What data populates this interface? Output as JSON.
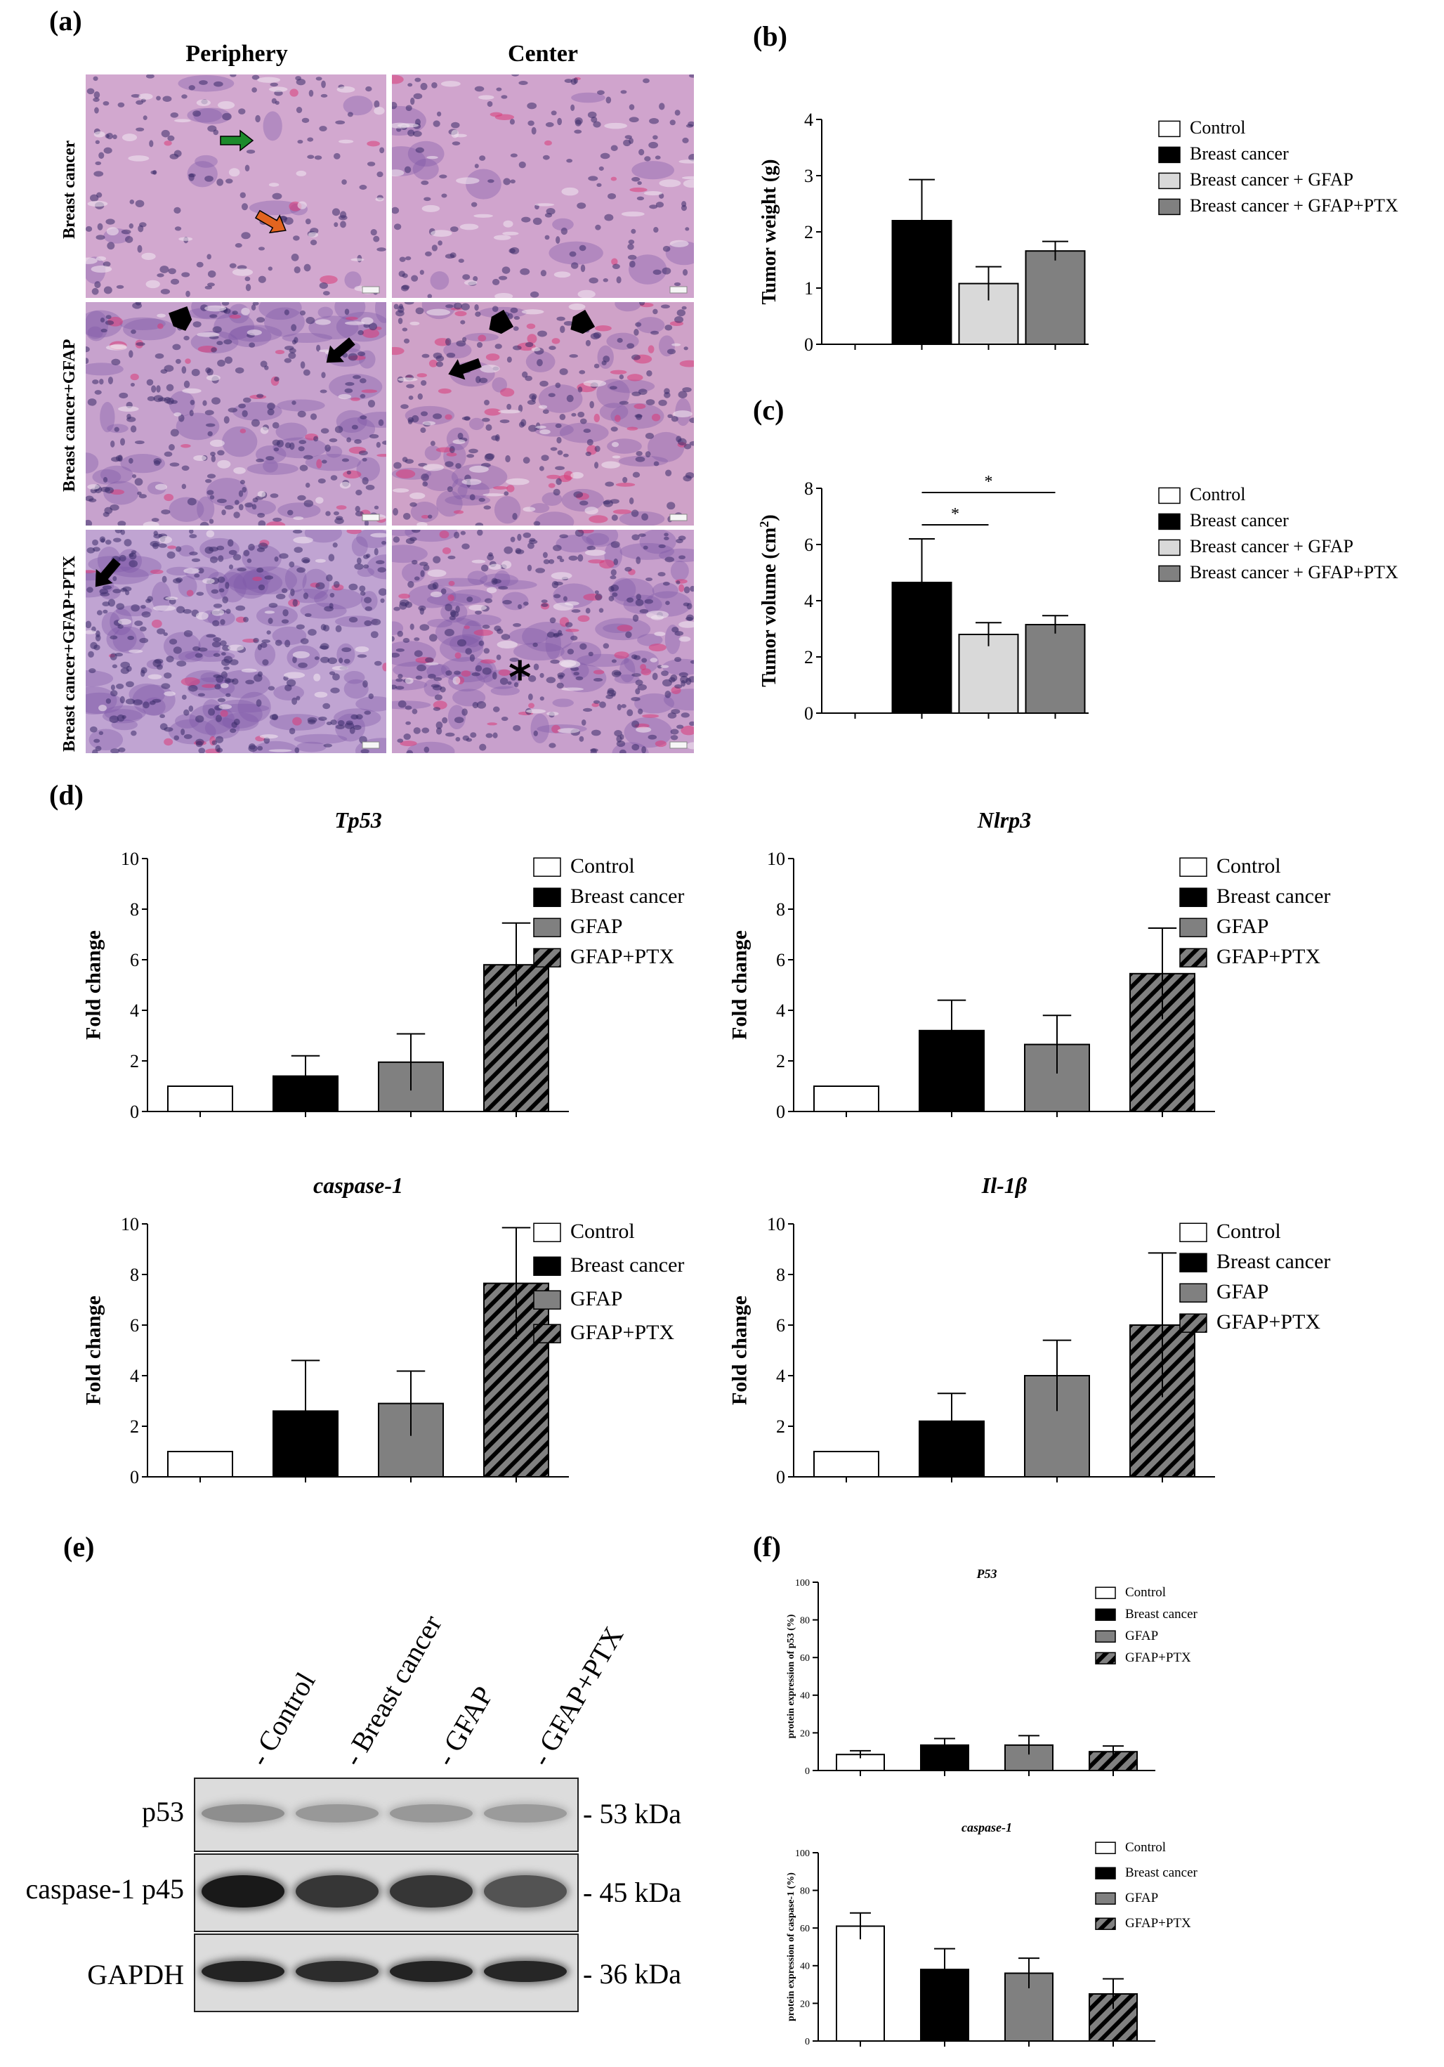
{
  "panels": {
    "a": "(a)",
    "b": "(b)",
    "c": "(c)",
    "d": "(d)",
    "e": "(e)",
    "f": "(f)"
  },
  "histology": {
    "columns": [
      "Periphery",
      "Center"
    ],
    "rows": [
      "Breast cancer",
      "Breast cancer+GFAP",
      "Breast cancer+GFAP+PTX"
    ],
    "colors": {
      "tissue_pink": "#c999c4",
      "tissue_purple": "#7a55a6",
      "nuclei": "#3a2b6a",
      "rbc": "#d83a78"
    },
    "annotations": [
      "green-arrow",
      "orange-arrow",
      "black-arrow",
      "black-pentagon-arrow",
      "asterisk"
    ]
  },
  "chart_data": [
    {
      "id": "b",
      "type": "bar",
      "categories": [
        "Control",
        "Breast cancer",
        "Breast cancer + GFAP",
        "Breast cancer + GFAP+PTX"
      ],
      "values": [
        0,
        2.2,
        1.08,
        1.66
      ],
      "errors": [
        0,
        0.73,
        0.3,
        0.17
      ],
      "colors": [
        "#ffffff",
        "#000000",
        "#d9d9d9",
        "#808080"
      ],
      "patterns": [
        "solid",
        "solid",
        "solid",
        "solid"
      ],
      "title": "",
      "xlabel": "",
      "ylabel": "Tumor weight (g)",
      "ylim": [
        0,
        4
      ],
      "yticks": [
        "0",
        "1",
        "2",
        "3",
        "4"
      ],
      "legend": [
        "Control",
        "Breast cancer",
        "Breast cancer + GFAP",
        "Breast cancer + GFAP+PTX"
      ],
      "legend_position": "right",
      "grid": false
    },
    {
      "id": "c",
      "type": "bar",
      "categories": [
        "Control",
        "Breast cancer",
        "Breast cancer + GFAP",
        "Breast cancer + GFAP+PTX"
      ],
      "values": [
        0,
        4.65,
        2.8,
        3.15
      ],
      "errors": [
        0,
        1.55,
        0.42,
        0.32
      ],
      "colors": [
        "#ffffff",
        "#000000",
        "#d9d9d9",
        "#808080"
      ],
      "patterns": [
        "solid",
        "solid",
        "solid",
        "solid"
      ],
      "title": "",
      "xlabel": "",
      "ylabel": "Tumor volume (cm",
      "ylabel_sup": "2",
      "ylabel_end": ")",
      "ylim": [
        0,
        8
      ],
      "yticks": [
        "0",
        "2",
        "4",
        "6",
        "8"
      ],
      "significance": [
        {
          "from": 1,
          "to": 2,
          "level": 6.7,
          "label": "*"
        },
        {
          "from": 1,
          "to": 3,
          "level": 7.85,
          "label": "*"
        }
      ],
      "legend": [
        "Control",
        "Breast cancer",
        "Breast cancer + GFAP",
        "Breast cancer + GFAP+PTX"
      ],
      "legend_position": "right",
      "grid": false
    },
    {
      "id": "d1",
      "type": "bar",
      "title": "Tp53",
      "categories": [
        "Control",
        "Breast cancer",
        "GFAP",
        "GFAP+PTX"
      ],
      "values": [
        1,
        1.4,
        1.95,
        5.8
      ],
      "errors": [
        0,
        0.8,
        1.12,
        1.65
      ],
      "colors": [
        "#ffffff",
        "#000000",
        "#808080",
        "#808080"
      ],
      "patterns": [
        "solid",
        "solid",
        "solid",
        "hatch"
      ],
      "xlabel": "",
      "ylabel": "Fold change",
      "ylim": [
        0,
        10
      ],
      "yticks": [
        "0",
        "2",
        "4",
        "6",
        "8",
        "10"
      ],
      "legend": [
        "Control",
        "Breast cancer",
        "GFAP",
        "GFAP+PTX"
      ],
      "legend_position": "right",
      "grid": false
    },
    {
      "id": "d2",
      "type": "bar",
      "title": "Nlrp3",
      "categories": [
        "Control",
        "Breast cancer",
        "GFAP",
        "GFAP+PTX"
      ],
      "values": [
        1,
        3.2,
        2.65,
        5.45
      ],
      "errors": [
        0,
        1.2,
        1.15,
        1.8
      ],
      "colors": [
        "#ffffff",
        "#000000",
        "#808080",
        "#808080"
      ],
      "patterns": [
        "solid",
        "solid",
        "solid",
        "hatch"
      ],
      "xlabel": "",
      "ylabel": "Fold change",
      "ylim": [
        0,
        10
      ],
      "yticks": [
        "0",
        "2",
        "4",
        "6",
        "8",
        "10"
      ],
      "legend": [
        "Control",
        "Breast cancer",
        "GFAP",
        "GFAP+PTX"
      ],
      "legend_position": "right",
      "grid": false
    },
    {
      "id": "d3",
      "type": "bar",
      "title": "caspase-1",
      "categories": [
        "Control",
        "Breast cancer",
        "GFAP",
        "GFAP+PTX"
      ],
      "values": [
        1,
        2.6,
        2.9,
        7.65
      ],
      "errors": [
        0,
        2.0,
        1.28,
        2.2
      ],
      "colors": [
        "#ffffff",
        "#000000",
        "#808080",
        "#808080"
      ],
      "patterns": [
        "solid",
        "solid",
        "solid",
        "hatch"
      ],
      "xlabel": "",
      "ylabel": "Fold change",
      "ylim": [
        0,
        10
      ],
      "yticks": [
        "0",
        "2",
        "4",
        "6",
        "8",
        "10"
      ],
      "legend": [
        "Control",
        "Breast cancer",
        "GFAP",
        "GFAP+PTX"
      ],
      "legend_position": "right",
      "grid": false
    },
    {
      "id": "d4",
      "type": "bar",
      "title": "Il-1β",
      "categories": [
        "Control",
        "Breast cancer",
        "GFAP",
        "GFAP+PTX"
      ],
      "values": [
        1,
        2.2,
        4.0,
        6.0
      ],
      "errors": [
        0,
        1.1,
        1.4,
        2.85
      ],
      "colors": [
        "#ffffff",
        "#000000",
        "#808080",
        "#808080"
      ],
      "patterns": [
        "solid",
        "solid",
        "solid",
        "hatch"
      ],
      "xlabel": "",
      "ylabel": "Fold change",
      "ylim": [
        0,
        10
      ],
      "yticks": [
        "0",
        "2",
        "4",
        "6",
        "8",
        "10"
      ],
      "legend": [
        "Control",
        "Breast cancer",
        "GFAP",
        "GFAP+PTX"
      ],
      "legend_position": "right",
      "grid": false
    },
    {
      "id": "f1",
      "type": "bar",
      "title": "P53",
      "categories": [
        "Control",
        "Breast cancer",
        "GFAP",
        "GFAP+PTX"
      ],
      "values": [
        8.5,
        13.5,
        13.5,
        10
      ],
      "errors": [
        2,
        3.5,
        5,
        3
      ],
      "colors": [
        "#ffffff",
        "#000000",
        "#808080",
        "#808080"
      ],
      "patterns": [
        "solid",
        "solid",
        "solid",
        "hatch"
      ],
      "xlabel": "",
      "ylabel": "protein expression of p53 (%)",
      "ylim": [
        0,
        100
      ],
      "yticks": [
        "0",
        "20",
        "40",
        "60",
        "80",
        "100"
      ],
      "legend": [
        "Control",
        "Breast cancer",
        "GFAP",
        "GFAP+PTX"
      ],
      "legend_position": "right",
      "grid": false
    },
    {
      "id": "f2",
      "type": "bar",
      "title": "caspase-1",
      "categories": [
        "Control",
        "Breast cancer",
        "GFAP",
        "GFAP+PTX"
      ],
      "values": [
        61,
        38,
        36,
        25
      ],
      "errors": [
        7,
        11,
        8,
        8
      ],
      "colors": [
        "#ffffff",
        "#000000",
        "#808080",
        "#808080"
      ],
      "patterns": [
        "solid",
        "solid",
        "solid",
        "hatch"
      ],
      "xlabel": "",
      "ylabel": "protein expression of caspase-1 (%)",
      "ylim": [
        0,
        100
      ],
      "yticks": [
        "0",
        "20",
        "40",
        "60",
        "80",
        "100"
      ],
      "legend": [
        "Control",
        "Breast cancer",
        "GFAP",
        "GFAP+PTX"
      ],
      "legend_position": "right",
      "grid": false
    }
  ],
  "western": {
    "lanes": [
      "- Control",
      "- Breast cancer",
      "- GFAP",
      "- GFAP+PTX"
    ],
    "rows": [
      {
        "label": "p53",
        "kda": "- 53 kDa",
        "intensity": [
          0.35,
          0.3,
          0.3,
          0.28
        ]
      },
      {
        "label": "caspase-1 p45",
        "kda": "- 45 kDa",
        "intensity": [
          0.95,
          0.8,
          0.8,
          0.65
        ]
      },
      {
        "label": "GAPDH",
        "kda": "- 36 kDa",
        "intensity": [
          0.9,
          0.85,
          0.9,
          0.88
        ]
      }
    ]
  }
}
